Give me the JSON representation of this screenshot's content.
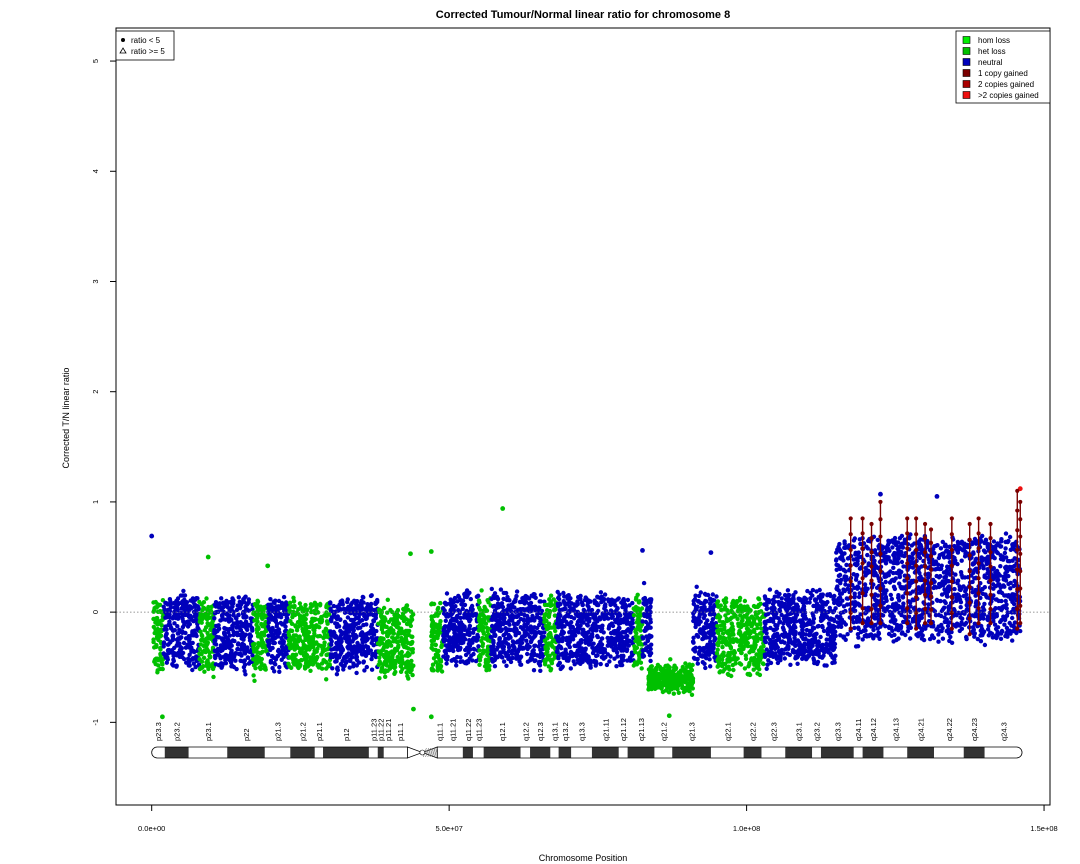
{
  "chart_data": {
    "type": "scatter",
    "title": "Corrected Tumour/Normal linear ratio for chromosome  8",
    "xlabel": "Chromosome Position",
    "ylabel": "Corrected T/N linear ratio",
    "xlim": [
      -6000000,
      151000000
    ],
    "ylim": [
      -1.75,
      5.3
    ],
    "x_ticks": [
      {
        "value": 0,
        "label": "0.0e+00"
      },
      {
        "value": 50000000,
        "label": "5.0e+07"
      },
      {
        "value": 100000000,
        "label": "1.0e+08"
      },
      {
        "value": 150000000,
        "label": "1.5e+08"
      }
    ],
    "y_ticks": [
      -1,
      0,
      1,
      2,
      3,
      4,
      5
    ],
    "reference_line": 0,
    "shape_legend": {
      "placement": "top-left",
      "entries": [
        {
          "label": "ratio < 5",
          "shape": "dot"
        },
        {
          "label": "ratio >= 5",
          "shape": "triangle"
        }
      ]
    },
    "color_legend": {
      "placement": "top-right",
      "entries": [
        {
          "label": "hom loss",
          "color": "#00ee00"
        },
        {
          "label": "het loss",
          "color": "#00c000"
        },
        {
          "label": "neutral",
          "color": "#0000bb"
        },
        {
          "label": "1 copy gained",
          "color": "#7a0000"
        },
        {
          "label": "2 copies gained",
          "color": "#aa0000"
        },
        {
          "label": ">2 copies gained",
          "color": "#ee1010"
        }
      ]
    },
    "segments": [
      {
        "start": 300000,
        "end": 2000000,
        "state": "het loss",
        "mean": -0.2
      },
      {
        "start": 2000000,
        "end": 8000000,
        "state": "neutral",
        "mean": -0.18
      },
      {
        "start": 8000000,
        "end": 10500000,
        "state": "het loss",
        "mean": -0.22
      },
      {
        "start": 10500000,
        "end": 17000000,
        "state": "neutral",
        "mean": -0.18
      },
      {
        "start": 17000000,
        "end": 19500000,
        "state": "het loss",
        "mean": -0.22
      },
      {
        "start": 19500000,
        "end": 23000000,
        "state": "neutral",
        "mean": -0.18
      },
      {
        "start": 23000000,
        "end": 30000000,
        "state": "het loss",
        "mean": -0.22
      },
      {
        "start": 30000000,
        "end": 38000000,
        "state": "neutral",
        "mean": -0.18
      },
      {
        "start": 38000000,
        "end": 44000000,
        "state": "het loss",
        "mean": -0.26
      },
      {
        "start": 47000000,
        "end": 49000000,
        "state": "het loss",
        "mean": -0.24
      },
      {
        "start": 49000000,
        "end": 55000000,
        "state": "neutral",
        "mean": -0.15
      },
      {
        "start": 55000000,
        "end": 57000000,
        "state": "het loss",
        "mean": -0.2
      },
      {
        "start": 57000000,
        "end": 66000000,
        "state": "neutral",
        "mean": -0.15
      },
      {
        "start": 66000000,
        "end": 68000000,
        "state": "het loss",
        "mean": -0.2
      },
      {
        "start": 68000000,
        "end": 81000000,
        "state": "neutral",
        "mean": -0.15
      },
      {
        "start": 81000000,
        "end": 82500000,
        "state": "het loss",
        "mean": -0.2
      },
      {
        "start": 82500000,
        "end": 84000000,
        "state": "neutral",
        "mean": -0.1
      },
      {
        "start": 83500000,
        "end": 91000000,
        "state": "het loss",
        "mean": -0.6
      },
      {
        "start": 91000000,
        "end": 95000000,
        "state": "neutral",
        "mean": -0.15
      },
      {
        "start": 95000000,
        "end": 103000000,
        "state": "het loss",
        "mean": -0.22
      },
      {
        "start": 103000000,
        "end": 115000000,
        "state": "neutral",
        "mean": -0.15
      },
      {
        "start": 115000000,
        "end": 146000000,
        "state": "neutral",
        "mean": 0.22
      }
    ],
    "highlighted_points": [
      {
        "x": 0,
        "y": 0.69,
        "state": "neutral"
      },
      {
        "x": 59000000,
        "y": 0.94,
        "state": "het loss"
      },
      {
        "x": 47000000,
        "y": 0.55,
        "state": "het loss"
      },
      {
        "x": 43500000,
        "y": 0.53,
        "state": "het loss"
      },
      {
        "x": 19500000,
        "y": 0.42,
        "state": "het loss"
      },
      {
        "x": 9500000,
        "y": 0.5,
        "state": "het loss"
      },
      {
        "x": 82500000,
        "y": 0.56,
        "state": "neutral"
      },
      {
        "x": 94000000,
        "y": 0.54,
        "state": "neutral"
      },
      {
        "x": 122500000,
        "y": 1.07,
        "state": "neutral"
      },
      {
        "x": 132000000,
        "y": 1.05,
        "state": "neutral"
      },
      {
        "x": 146000000,
        "y": 1.12,
        "state": ">2 copies gained"
      },
      {
        "x": 1800000,
        "y": -0.95,
        "state": "het loss"
      },
      {
        "x": 44000000,
        "y": -0.88,
        "state": "het loss"
      },
      {
        "x": 47000000,
        "y": -0.95,
        "state": "het loss"
      },
      {
        "x": 87000000,
        "y": -0.94,
        "state": "het loss"
      }
    ],
    "gain_lines": [
      {
        "x": 117500000,
        "top": 0.85,
        "bottom": -0.15
      },
      {
        "x": 119500000,
        "top": 0.85,
        "bottom": -0.1
      },
      {
        "x": 121000000,
        "top": 0.8,
        "bottom": -0.1
      },
      {
        "x": 122500000,
        "top": 1.0,
        "bottom": -0.1
      },
      {
        "x": 127000000,
        "top": 0.85,
        "bottom": -0.1
      },
      {
        "x": 128500000,
        "top": 0.85,
        "bottom": -0.15
      },
      {
        "x": 130000000,
        "top": 0.8,
        "bottom": -0.1
      },
      {
        "x": 131000000,
        "top": 0.75,
        "bottom": -0.1
      },
      {
        "x": 134500000,
        "top": 0.85,
        "bottom": -0.15
      },
      {
        "x": 137500000,
        "top": 0.8,
        "bottom": -0.2
      },
      {
        "x": 139000000,
        "top": 0.85,
        "bottom": -0.1
      },
      {
        "x": 141000000,
        "top": 0.8,
        "bottom": -0.1
      },
      {
        "x": 145500000,
        "top": 1.1,
        "bottom": -0.15
      },
      {
        "x": 146000000,
        "top": 1.0,
        "bottom": -0.1
      }
    ],
    "ideogram": {
      "centromere": [
        43000000,
        48000000
      ],
      "bands": [
        {
          "name": "p23.3",
          "start": 0,
          "end": 2200000,
          "stain": "white"
        },
        {
          "name": "p23.2",
          "start": 2200000,
          "end": 6200000,
          "stain": "black"
        },
        {
          "name": "p23.1",
          "start": 6200000,
          "end": 12700000,
          "stain": "white"
        },
        {
          "name": "p22",
          "start": 12700000,
          "end": 19000000,
          "stain": "black"
        },
        {
          "name": "p21.3",
          "start": 19000000,
          "end": 23300000,
          "stain": "white"
        },
        {
          "name": "p21.2",
          "start": 23300000,
          "end": 27400000,
          "stain": "black"
        },
        {
          "name": "p21.1",
          "start": 27400000,
          "end": 28800000,
          "stain": "white"
        },
        {
          "name": "p12",
          "start": 28800000,
          "end": 36500000,
          "stain": "black"
        },
        {
          "name": "p11.23",
          "start": 36500000,
          "end": 38000000,
          "stain": "white"
        },
        {
          "name": "p11.22",
          "start": 38000000,
          "end": 39000000,
          "stain": "black"
        },
        {
          "name": "p11.21",
          "start": 39000000,
          "end": 40500000,
          "stain": "white"
        },
        {
          "name": "p11.1",
          "start": 40500000,
          "end": 43000000,
          "stain": "white"
        },
        {
          "name": "q11.1",
          "start": 48000000,
          "end": 48800000,
          "stain": "white"
        },
        {
          "name": "q11.21",
          "start": 48800000,
          "end": 52300000,
          "stain": "white"
        },
        {
          "name": "q11.22",
          "start": 52300000,
          "end": 54000000,
          "stain": "black"
        },
        {
          "name": "q11.23",
          "start": 54000000,
          "end": 55800000,
          "stain": "white"
        },
        {
          "name": "q12.1",
          "start": 55800000,
          "end": 62000000,
          "stain": "black"
        },
        {
          "name": "q12.2",
          "start": 62000000,
          "end": 63600000,
          "stain": "white"
        },
        {
          "name": "q12.3",
          "start": 63600000,
          "end": 67000000,
          "stain": "black"
        },
        {
          "name": "q13.1",
          "start": 67000000,
          "end": 68400000,
          "stain": "white"
        },
        {
          "name": "q13.2",
          "start": 68400000,
          "end": 70500000,
          "stain": "black"
        },
        {
          "name": "q13.3",
          "start": 70500000,
          "end": 74000000,
          "stain": "white"
        },
        {
          "name": "q21.11",
          "start": 74000000,
          "end": 78500000,
          "stain": "black"
        },
        {
          "name": "q21.12",
          "start": 78500000,
          "end": 80000000,
          "stain": "white"
        },
        {
          "name": "q21.13",
          "start": 80000000,
          "end": 84500000,
          "stain": "black"
        },
        {
          "name": "q21.2",
          "start": 84500000,
          "end": 87500000,
          "stain": "white"
        },
        {
          "name": "q21.3",
          "start": 87500000,
          "end": 94000000,
          "stain": "black"
        },
        {
          "name": "q22.1",
          "start": 94000000,
          "end": 99500000,
          "stain": "white"
        },
        {
          "name": "q22.2",
          "start": 99500000,
          "end": 102500000,
          "stain": "black"
        },
        {
          "name": "q22.3",
          "start": 102500000,
          "end": 106500000,
          "stain": "white"
        },
        {
          "name": "q23.1",
          "start": 106500000,
          "end": 111000000,
          "stain": "black"
        },
        {
          "name": "q23.2",
          "start": 111000000,
          "end": 112500000,
          "stain": "white"
        },
        {
          "name": "q23.3",
          "start": 112500000,
          "end": 118000000,
          "stain": "black"
        },
        {
          "name": "q24.11",
          "start": 118000000,
          "end": 119500000,
          "stain": "white"
        },
        {
          "name": "q24.12",
          "start": 119500000,
          "end": 123000000,
          "stain": "black"
        },
        {
          "name": "q24.13",
          "start": 123000000,
          "end": 127000000,
          "stain": "white"
        },
        {
          "name": "q24.21",
          "start": 127000000,
          "end": 131500000,
          "stain": "black"
        },
        {
          "name": "q24.22",
          "start": 131500000,
          "end": 136500000,
          "stain": "white"
        },
        {
          "name": "q24.23",
          "start": 136500000,
          "end": 140000000,
          "stain": "black"
        },
        {
          "name": "q24.3",
          "start": 140000000,
          "end": 146300000,
          "stain": "white"
        }
      ]
    }
  }
}
